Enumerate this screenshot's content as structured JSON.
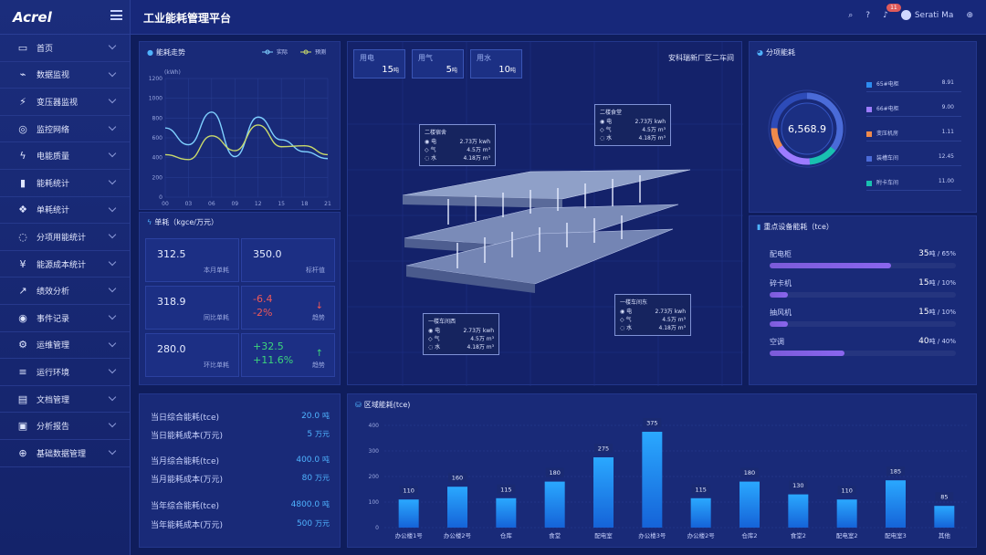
{
  "brand": {
    "logo": "Acrel"
  },
  "header": {
    "title": "工业能耗管理平台",
    "notification_count": "11",
    "user": "Serati Ma"
  },
  "sidebar": {
    "items": [
      {
        "label": "首页",
        "icon": "monitor-icon",
        "glyph": "▭"
      },
      {
        "label": "数据监视",
        "icon": "chart-icon",
        "glyph": "⌁"
      },
      {
        "label": "变压器监视",
        "icon": "transformer-icon",
        "glyph": "⚡"
      },
      {
        "label": "监控网络",
        "icon": "globe-icon",
        "glyph": "◎"
      },
      {
        "label": "电能质量",
        "icon": "bolt-icon",
        "glyph": "ϟ"
      },
      {
        "label": "能耗统计",
        "icon": "bar-chart-icon",
        "glyph": "▮"
      },
      {
        "label": "单耗统计",
        "icon": "nodes-icon",
        "glyph": "❖"
      },
      {
        "label": "分项用能统计",
        "icon": "bulb-icon",
        "glyph": "◌"
      },
      {
        "label": "能源成本统计",
        "icon": "yen-icon",
        "glyph": "¥"
      },
      {
        "label": "绩效分析",
        "icon": "trend-icon",
        "glyph": "↗"
      },
      {
        "label": "事件记录",
        "icon": "target-icon",
        "glyph": "◉"
      },
      {
        "label": "运维管理",
        "icon": "wrench-icon",
        "glyph": "⚙"
      },
      {
        "label": "运行环境",
        "icon": "list-icon",
        "glyph": "≡"
      },
      {
        "label": "文档管理",
        "icon": "folder-icon",
        "glyph": "▤"
      },
      {
        "label": "分析报告",
        "icon": "clipboard-icon",
        "glyph": "▣"
      },
      {
        "label": "基础数据管理",
        "icon": "database-icon",
        "glyph": "⊕"
      }
    ]
  },
  "trend": {
    "title": "能耗走势",
    "legend_actual": "实际",
    "legend_forecast": "预测",
    "unit": "(kWh)",
    "yticks": [
      "1200",
      "1000",
      "800",
      "600",
      "400",
      "200",
      "0"
    ],
    "xticks": [
      "00",
      "03",
      "06",
      "09",
      "12",
      "15",
      "18",
      "21"
    ]
  },
  "unit_consumption": {
    "title": "单耗（kgce/万元）",
    "cards": [
      {
        "value": "312.5",
        "label": "本月单耗"
      },
      {
        "value": "350.0",
        "label": "标杆值"
      },
      {
        "value": "318.9",
        "label": "同比单耗"
      },
      {
        "value": "-6.4",
        "value2": "-2%",
        "label": "趋势"
      },
      {
        "value": "280.0",
        "label": "环比单耗"
      },
      {
        "value": "+32.5",
        "value2": "+11.6%",
        "label": "趋势"
      }
    ]
  },
  "summary": {
    "rows": [
      {
        "label": "当日综合能耗(tce)",
        "value": "20.0",
        "unit": "吨"
      },
      {
        "label": "当日能耗成本(万元)",
        "value": "5",
        "unit": "万元"
      },
      {
        "label": "当月综合能耗(tce)",
        "value": "400.0",
        "unit": "吨"
      },
      {
        "label": "当月能耗成本(万元)",
        "value": "80",
        "unit": "万元"
      },
      {
        "label": "当年综合能耗(tce)",
        "value": "4800.0",
        "unit": "吨"
      },
      {
        "label": "当年能耗成本(万元)",
        "value": "500",
        "unit": "万元"
      }
    ]
  },
  "factory": {
    "location": "安科瑞新厂区二车间",
    "tags": [
      {
        "name": "用电",
        "value": "15",
        "unit": "吨"
      },
      {
        "name": "用气",
        "value": "5",
        "unit": "吨"
      },
      {
        "name": "用水",
        "value": "10",
        "unit": "吨"
      }
    ],
    "cards": [
      {
        "title": "二楼宿舍",
        "elec": "2.73万 kwh",
        "gas": "4.5万 m³",
        "water": "4.18万 m³"
      },
      {
        "title": "二楼食堂",
        "elec": "2.73万 kwh",
        "gas": "4.5万 m³",
        "water": "4.18万 m³"
      },
      {
        "title": "一楼车间西",
        "elec": "2.73万 kwh",
        "gas": "4.5万 m³",
        "water": "4.18万 m³"
      },
      {
        "title": "一楼车间东",
        "elec": "2.73万 kwh",
        "gas": "4.5万 m³",
        "water": "4.18万 m³"
      }
    ],
    "label_elec": "电",
    "label_gas": "气",
    "label_water": "水"
  },
  "itemized": {
    "title": "分项能耗",
    "total": "6,568.9",
    "items": [
      {
        "name": "65#电柜",
        "value": "8.91",
        "color": "#2d8cf0"
      },
      {
        "name": "66#电柜",
        "value": "9.00",
        "color": "#9c7bff"
      },
      {
        "name": "变压机房",
        "value": "1.11",
        "color": "#f08a4b"
      },
      {
        "name": "装槽车间",
        "value": "12.45",
        "color": "#4a6bd8"
      },
      {
        "name": "附卡车间",
        "value": "11.00",
        "color": "#19c0b0"
      }
    ]
  },
  "key_equipment": {
    "title": "重点设备能耗（tce）",
    "items": [
      {
        "name": "配电柜",
        "value": "35",
        "unit": "吨",
        "percent": "65%",
        "ratio": 0.65
      },
      {
        "name": "碎卡机",
        "value": "15",
        "unit": "吨",
        "percent": "10%",
        "ratio": 0.1
      },
      {
        "name": "抽风机",
        "value": "15",
        "unit": "吨",
        "percent": "10%",
        "ratio": 0.1
      },
      {
        "name": "空调",
        "value": "40",
        "unit": "吨",
        "percent": "40%",
        "ratio": 0.4
      }
    ]
  },
  "chart_data": [
    {
      "type": "line",
      "title": "能耗走势",
      "ylabel": "(kWh)",
      "ylim": [
        0,
        1200
      ],
      "x": [
        "00",
        "03",
        "06",
        "09",
        "12",
        "15",
        "18",
        "21"
      ],
      "series": [
        {
          "name": "实际",
          "values": [
            700,
            530,
            860,
            410,
            810,
            580,
            460,
            390
          ]
        },
        {
          "name": "预测",
          "values": [
            430,
            380,
            620,
            470,
            730,
            510,
            520,
            430
          ]
        }
      ]
    },
    {
      "type": "bar",
      "title": "区域能耗(tce)",
      "ylim": [
        0,
        400
      ],
      "yticks": [
        "400",
        "300",
        "200",
        "100",
        "0"
      ],
      "categories": [
        "办公楼1号",
        "办公楼2号",
        "仓库",
        "食堂",
        "配电室",
        "办公楼3号",
        "办公楼2号",
        "仓库2",
        "食堂2",
        "配电室2",
        "配电室3",
        "其他"
      ],
      "values": [
        110,
        160,
        115,
        180,
        275,
        375,
        115,
        180,
        130,
        110,
        185,
        85
      ]
    }
  ]
}
